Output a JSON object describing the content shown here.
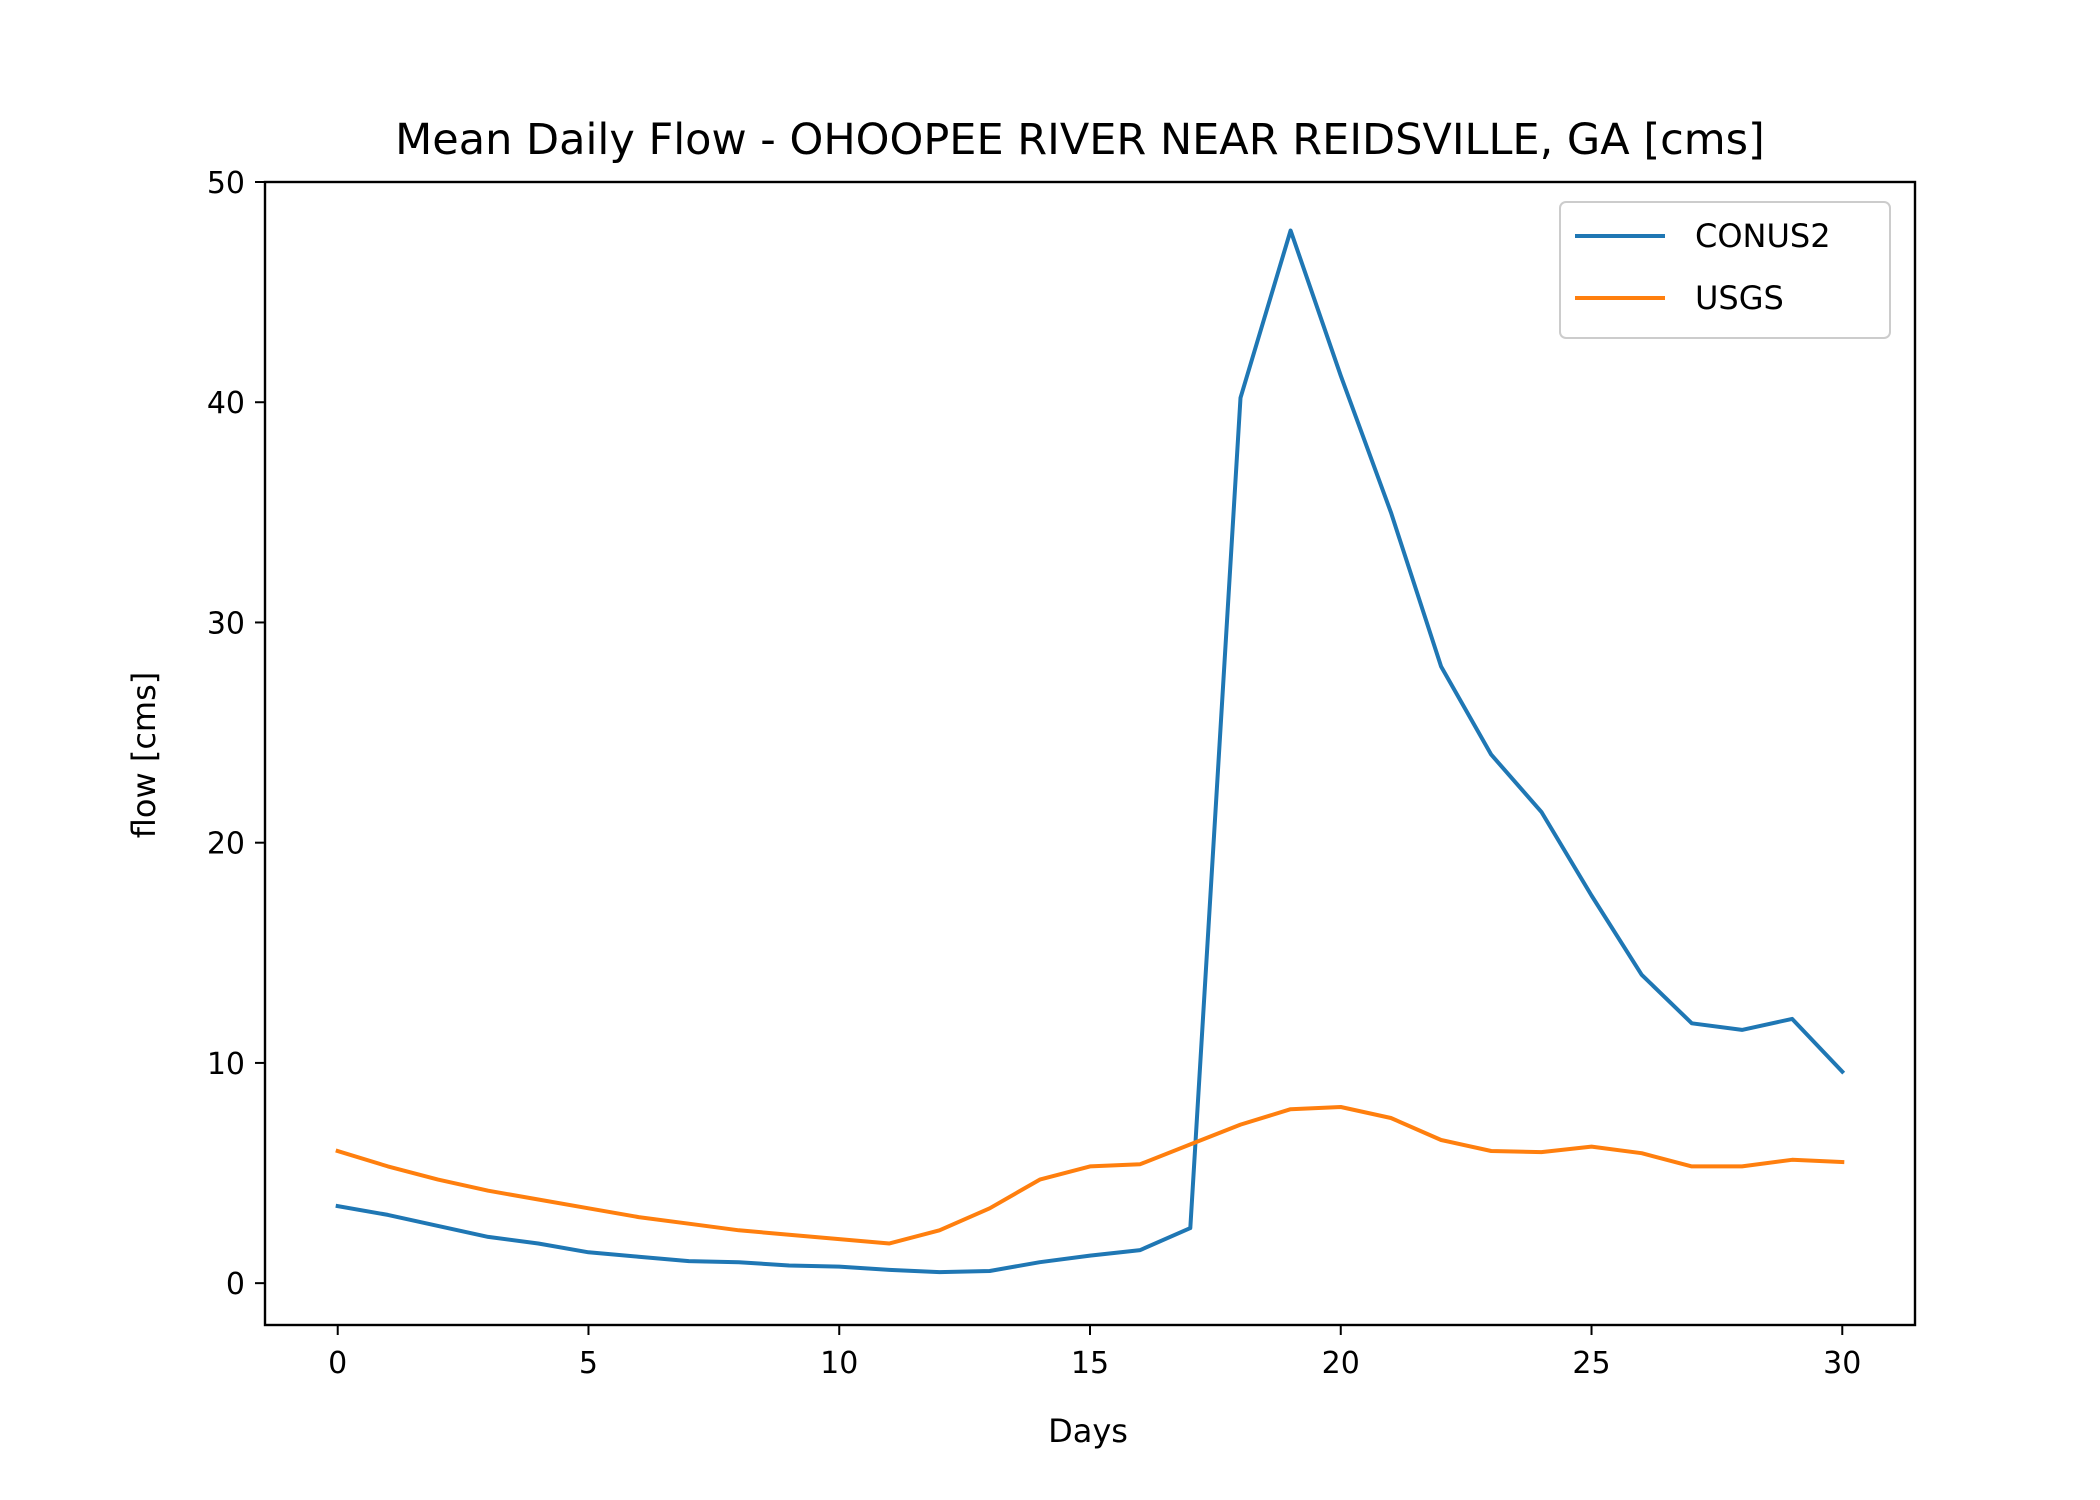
{
  "chart_data": {
    "type": "line",
    "title": "Mean Daily Flow - OHOOPEE RIVER NEAR REIDSVILLE, GA [cms]",
    "xlabel": "Days",
    "ylabel": "flow [cms]",
    "xlim": [
      -1.45,
      31.45
    ],
    "ylim": [
      -1.9,
      50.0
    ],
    "xticks": [
      0,
      5,
      10,
      15,
      20,
      25,
      30
    ],
    "xtick_labels": [
      "0",
      "5",
      "10",
      "15",
      "20",
      "25",
      "30"
    ],
    "yticks": [
      0,
      10,
      20,
      30,
      40,
      50
    ],
    "ytick_labels": [
      "0",
      "10",
      "20",
      "30",
      "40",
      "50"
    ],
    "grid": false,
    "legend_position": "top-right",
    "x": [
      0,
      1,
      2,
      3,
      4,
      5,
      6,
      7,
      8,
      9,
      10,
      11,
      12,
      13,
      14,
      15,
      16,
      17,
      18,
      19,
      20,
      21,
      22,
      23,
      24,
      25,
      26,
      27,
      28,
      29,
      30
    ],
    "series": [
      {
        "name": "CONUS2",
        "color": "#1f77b4",
        "values": [
          3.5,
          3.1,
          2.6,
          2.1,
          1.8,
          1.4,
          1.2,
          1.0,
          0.95,
          0.8,
          0.75,
          0.6,
          0.5,
          0.55,
          0.95,
          1.25,
          1.5,
          2.5,
          40.2,
          47.8,
          41.2,
          35.0,
          28.0,
          24.0,
          21.4,
          17.6,
          14.0,
          11.8,
          11.5,
          12.0,
          9.6
        ]
      },
      {
        "name": "USGS",
        "color": "#ff7f0e",
        "values": [
          6.0,
          5.3,
          4.7,
          4.2,
          3.8,
          3.4,
          3.0,
          2.7,
          2.4,
          2.2,
          2.0,
          1.8,
          2.4,
          3.4,
          4.7,
          5.3,
          5.4,
          6.3,
          7.2,
          7.9,
          8.0,
          7.5,
          6.5,
          6.0,
          5.95,
          6.2,
          5.9,
          5.3,
          5.3,
          5.6,
          5.5
        ]
      }
    ]
  }
}
